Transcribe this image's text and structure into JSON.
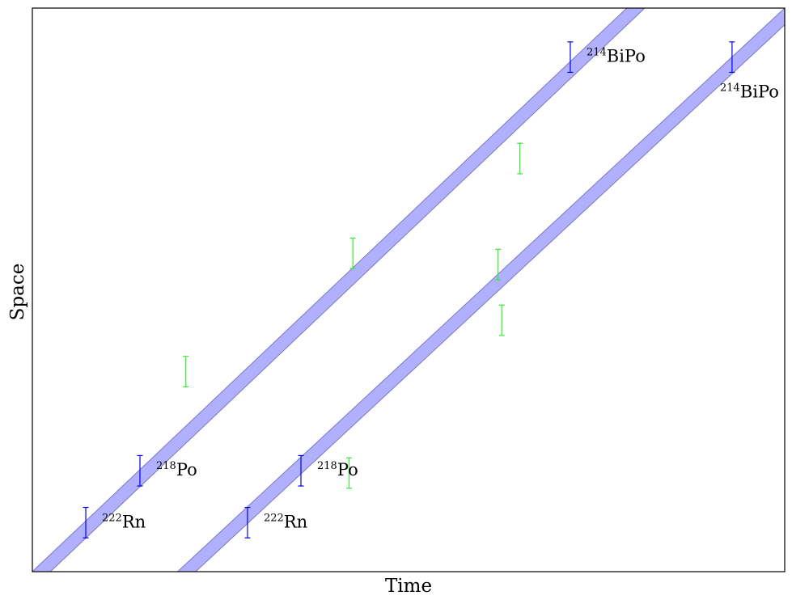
{
  "chart_data": {
    "type": "band-diagram",
    "xlabel": "Time",
    "ylabel": "Space",
    "xlim": [
      0,
      100
    ],
    "ylim": [
      0,
      100
    ],
    "ticks": false,
    "grid": false,
    "bands": [
      {
        "name": "",
        "x_at_ymin": 0,
        "x_at_ymax": 79,
        "width_x": 2.4,
        "color": "#b0b0ff",
        "edge": "#7a7ab8"
      },
      {
        "name": "",
        "x_at_ymin": 19.3,
        "x_at_ymax": 100,
        "width_x": 2.4,
        "color": "#b0b0ff",
        "edge": "#7a7ab8"
      }
    ],
    "decays": [
      {
        "x": 7.1,
        "y": 8.7,
        "label_pre": "222",
        "label_main": "Rn",
        "color": "#0000ee"
      },
      {
        "x": 14.3,
        "y": 17.9,
        "label_pre": "218",
        "label_main": "Po",
        "color": "#0000ee"
      },
      {
        "x": 71.5,
        "y": 91.3,
        "label_pre": "214",
        "label_main": "BiPo",
        "color": "#0000ee"
      },
      {
        "x": 28.6,
        "y": 8.7,
        "label_pre": "222",
        "label_main": "Rn",
        "color": "#0000ee"
      },
      {
        "x": 35.7,
        "y": 17.9,
        "label_pre": "218",
        "label_main": "Po",
        "color": "#0000ee"
      },
      {
        "x": 93.0,
        "y": 91.3,
        "label_pre": "214",
        "label_main": "BiPo",
        "color": "#0000ee"
      }
    ],
    "noise": [
      {
        "x": 20.4,
        "y": 35.5
      },
      {
        "x": 42.6,
        "y": 56.5
      },
      {
        "x": 64.8,
        "y": 73.3
      },
      {
        "x": 61.9,
        "y": 54.5
      },
      {
        "x": 62.4,
        "y": 44.6
      },
      {
        "x": 42.1,
        "y": 17.5
      }
    ],
    "noise_color": "#33ee33",
    "error_half_height": 2.7
  }
}
